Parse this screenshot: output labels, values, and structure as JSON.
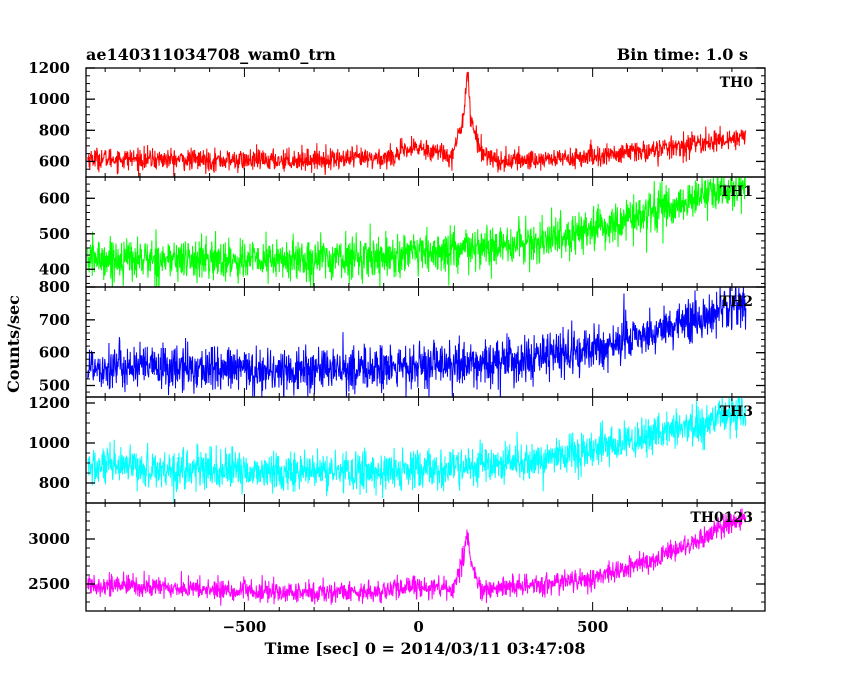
{
  "chart_data": {
    "type": "line",
    "title": "ae140311034708_wam0_trn",
    "bin_time": "Bin time: 1.0 s",
    "xlabel": "Time [sec] 0 = 2014/03/11 03:47:08",
    "ylabel": "Counts/sec",
    "xlim": [
      -955,
      995
    ],
    "x_ticks": [
      -500,
      0,
      500
    ],
    "x_tick_labels": [
      "−500",
      "0",
      "500"
    ],
    "x_data_range": [
      -950,
      940
    ],
    "series": [
      {
        "name": "TH0",
        "color": "#ff0000",
        "ylim": [
          500,
          1200
        ],
        "y_ticks": [
          600,
          800,
          1000,
          1200
        ],
        "noise": 35,
        "baseline": [
          [
            -950,
            620
          ],
          [
            -500,
            605
          ],
          [
            -100,
            620
          ],
          [
            0,
            690
          ],
          [
            40,
            670
          ],
          [
            100,
            640
          ],
          [
            130,
            900
          ],
          [
            140,
            1200
          ],
          [
            150,
            880
          ],
          [
            175,
            680
          ],
          [
            230,
            600
          ],
          [
            500,
            630
          ],
          [
            700,
            680
          ],
          [
            940,
            760
          ]
        ]
      },
      {
        "name": "TH1",
        "color": "#00ff00",
        "ylim": [
          350,
          660
        ],
        "y_ticks": [
          400,
          500,
          600
        ],
        "noise": 30,
        "baseline": [
          [
            -950,
            430
          ],
          [
            -400,
            425
          ],
          [
            0,
            440
          ],
          [
            300,
            470
          ],
          [
            500,
            510
          ],
          [
            700,
            570
          ],
          [
            940,
            640
          ]
        ]
      },
      {
        "name": "TH2",
        "color": "#0000ff",
        "ylim": [
          465,
          800
        ],
        "y_ticks": [
          500,
          600,
          700,
          800
        ],
        "noise": 35,
        "baseline": [
          [
            -950,
            560
          ],
          [
            -400,
            545
          ],
          [
            0,
            555
          ],
          [
            300,
            575
          ],
          [
            500,
            610
          ],
          [
            700,
            670
          ],
          [
            940,
            760
          ]
        ]
      },
      {
        "name": "TH3",
        "color": "#00ffff",
        "ylim": [
          700,
          1230
        ],
        "y_ticks": [
          800,
          1000,
          1200
        ],
        "noise": 50,
        "baseline": [
          [
            -950,
            880
          ],
          [
            -400,
            855
          ],
          [
            0,
            860
          ],
          [
            300,
            900
          ],
          [
            500,
            960
          ],
          [
            700,
            1050
          ],
          [
            940,
            1150
          ]
        ]
      },
      {
        "name": "TH0123",
        "color": "#ff00ff",
        "ylim": [
          2200,
          3400
        ],
        "y_ticks": [
          2500,
          3000
        ],
        "noise": 60,
        "baseline": [
          [
            -950,
            2500
          ],
          [
            -400,
            2400
          ],
          [
            -100,
            2420
          ],
          [
            0,
            2480
          ],
          [
            100,
            2440
          ],
          [
            130,
            2800
          ],
          [
            140,
            3100
          ],
          [
            150,
            2750
          ],
          [
            180,
            2420
          ],
          [
            500,
            2560
          ],
          [
            700,
            2800
          ],
          [
            940,
            3250
          ]
        ]
      }
    ]
  }
}
